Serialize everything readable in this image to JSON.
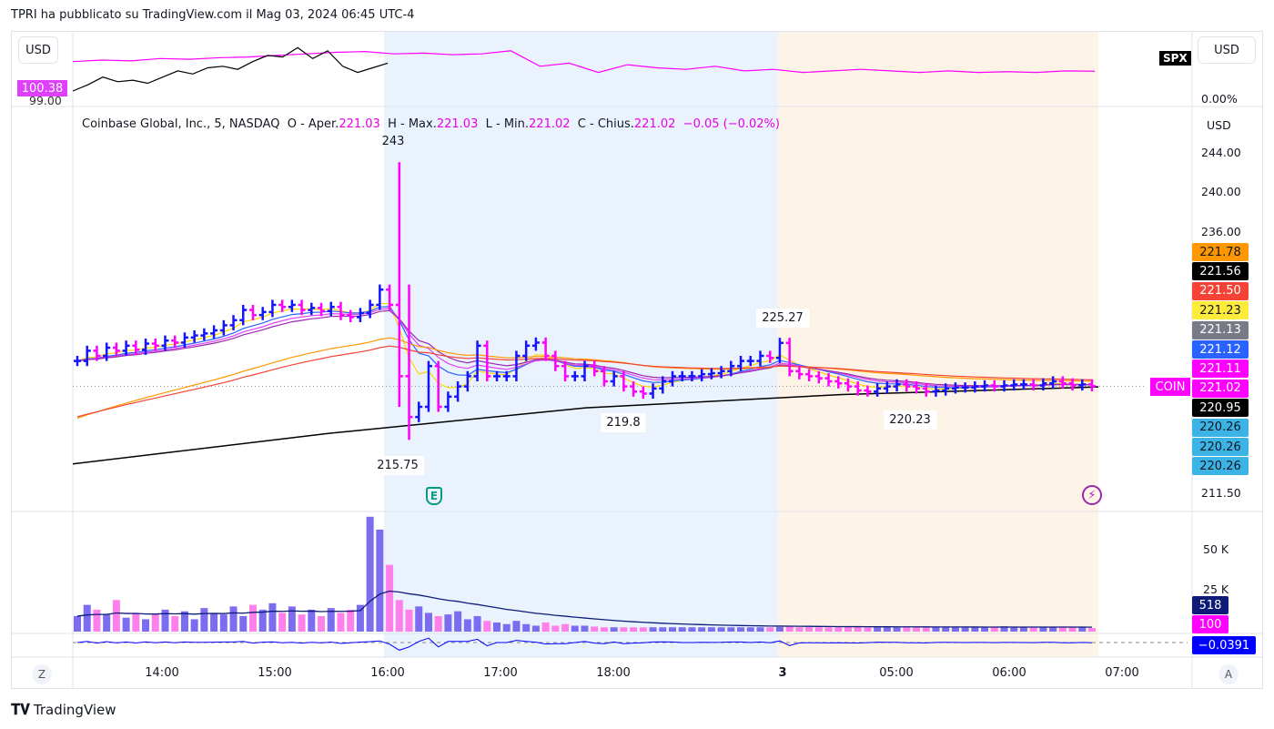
{
  "header": {
    "title": "TPRI ha pubblicato su TradingView.com il Mag 03, 2024 06:45 UTC-4"
  },
  "legend": {
    "name": "Coinbase Global, Inc., 5, NASDAQ",
    "o_label": "O - Aper.",
    "o": "221.03",
    "h_label": "H - Max.",
    "h": "221.03",
    "l_label": "L - Min.",
    "l": "221.02",
    "c_label": "C - Chius.",
    "c": "221.02",
    "change": "−0.05 (−0.02%)"
  },
  "top_pane": {
    "currency_left": "USD",
    "currency_right": "USD",
    "symbol_badge": "SPX",
    "value_badge": "100.38",
    "left_tick": "99.00",
    "right_tick": "0.00%"
  },
  "main_pane": {
    "currency": "USD",
    "symbol_badge": "COIN",
    "price_ticks": [
      "244.00",
      "240.00",
      "236.00",
      "211.50"
    ],
    "price_badges": [
      {
        "v": "221.78",
        "bg": "#ff9800",
        "fg": "#131722"
      },
      {
        "v": "221.56",
        "bg": "#000000",
        "fg": "#ffffff"
      },
      {
        "v": "221.50",
        "bg": "#f44336",
        "fg": "#ffffff"
      },
      {
        "v": "221.23",
        "bg": "#ffeb3b",
        "fg": "#131722"
      },
      {
        "v": "221.13",
        "bg": "#787b86",
        "fg": "#ffffff"
      },
      {
        "v": "221.12",
        "bg": "#2962ff",
        "fg": "#ffffff"
      },
      {
        "v": "221.11",
        "bg": "#ff00ff",
        "fg": "#ffffff"
      },
      {
        "v": "221.02",
        "bg": "#ff00ff",
        "fg": "#ffffff"
      },
      {
        "v": "220.95",
        "bg": "#000000",
        "fg": "#ffffff"
      },
      {
        "v": "220.26",
        "bg": "#3bb3e4",
        "fg": "#131722"
      },
      {
        "v": "220.26",
        "bg": "#3bb3e4",
        "fg": "#131722"
      },
      {
        "v": "220.26",
        "bg": "#3bb3e4",
        "fg": "#131722"
      }
    ],
    "annotations": [
      "243",
      "215.75",
      "225.27",
      "219.8",
      "220.23"
    ],
    "earnings_icon": "E"
  },
  "volume_pane": {
    "ticks": [
      "50 K",
      "25 K"
    ],
    "badges": [
      {
        "v": "518",
        "bg": "#0d1b7a"
      },
      {
        "v": "100",
        "bg": "#ff00ff"
      }
    ]
  },
  "osc_pane": {
    "badge": "−0.0391"
  },
  "time_axis": [
    "14:00",
    "15:00",
    "16:00",
    "17:00",
    "18:00",
    "3",
    "05:00",
    "06:00",
    "07:00"
  ],
  "footer": {
    "z": "Z",
    "a": "A",
    "brand": "TradingView"
  },
  "colors": {
    "up": "#1414ff",
    "down": "#ff00ff",
    "vol_up": "#7b6cf0",
    "vol_down": "#ff80ea",
    "session_blue": "#eaf3fd",
    "session_orange": "#fdf3e6"
  },
  "chart_data": {
    "type": "ohlc",
    "symbol": "COIN",
    "interval": "5",
    "closes": [
      223.5,
      224.5,
      224,
      224.8,
      224.5,
      225,
      224.6,
      225.2,
      225,
      225.5,
      225.3,
      225.8,
      226,
      226.2,
      226.5,
      227,
      227.5,
      228.5,
      228,
      228.3,
      229,
      228.8,
      229,
      228.5,
      228.7,
      228.4,
      228.8,
      228,
      227.8,
      228.2,
      229,
      230.5,
      229,
      222,
      218,
      219,
      223,
      219,
      220,
      221,
      222,
      225,
      222,
      222,
      222,
      224,
      225,
      225.3,
      224,
      223,
      222,
      222,
      223,
      222.5,
      221.5,
      222,
      221,
      220.5,
      220.3,
      220.8,
      221.5,
      222,
      222,
      222,
      222.2,
      222.3,
      222.5,
      223,
      223.5,
      223.5,
      224,
      223.8,
      225.27,
      222.5,
      222.2,
      222,
      221.8,
      221.5,
      221.3,
      221,
      220.6,
      220.5,
      220.8,
      221,
      221.2,
      221,
      220.8,
      220.5,
      220.6,
      220.8,
      220.9,
      220.9,
      221,
      221.1,
      221,
      221.1,
      221.2,
      221.2,
      221.1,
      221.3,
      221.5,
      221.3,
      221.1,
      221.2,
      221.02
    ],
    "extremes": {
      "high": 243,
      "low": 215.75
    },
    "volume_k": [
      8,
      15,
      12,
      9,
      18,
      7,
      10,
      6,
      9,
      12,
      8,
      11,
      6,
      13,
      10,
      9,
      14,
      8,
      15,
      12,
      16,
      10,
      14,
      9,
      12,
      8,
      13,
      10,
      12,
      15,
      70,
      62,
      40,
      18,
      12,
      14,
      10,
      8,
      9,
      11,
      6,
      8,
      5,
      4,
      3,
      5,
      3,
      2,
      4,
      2,
      3,
      2,
      2,
      1.5,
      1,
      1,
      1,
      1,
      1,
      1,
      1,
      1,
      1,
      1,
      1,
      1,
      1,
      1,
      1,
      1,
      1,
      1,
      1.2,
      1.5,
      1,
      1.2,
      1,
      1,
      1,
      1,
      1.3,
      1,
      1,
      1.5,
      1,
      1,
      1.2,
      1,
      1,
      1,
      1.4,
      1,
      1,
      1,
      1,
      1.5,
      1,
      1,
      1.2,
      1,
      1,
      1.3,
      1.2,
      1,
      0.5
    ],
    "ema": [
      {
        "period": 5,
        "color": "#ffd600"
      },
      {
        "period": 9,
        "color": "#2962ff"
      },
      {
        "period": 12,
        "color": "#e040fb"
      },
      {
        "period": 15,
        "color": "#9c27b0"
      },
      {
        "period": 40,
        "color": "#ff9800",
        "seed": 217.6
      },
      {
        "period": 50,
        "color": "#f44336",
        "seed": 217.8
      }
    ],
    "ma200": [
      213.4,
      216.4,
      218.9,
      220.2,
      220.95
    ],
    "spx": [
      100.9,
      101.0,
      100.95,
      101.1,
      101.05,
      101.15,
      101.2,
      101.3,
      101.4,
      101.5,
      101.55,
      101.4,
      101.45,
      101.35,
      101.4,
      101.6,
      100.6,
      100.8,
      100.2,
      100.7,
      100.5,
      100.4,
      100.6,
      100.3,
      100.4,
      100.2,
      100.3,
      100.4,
      100.3,
      100.2,
      100.3,
      100.2,
      100.25,
      100.2,
      100.3,
      100.28
    ],
    "spx_black": [
      99.0,
      99.4,
      99.9,
      99.6,
      99.7,
      99.5,
      99.9,
      100.3,
      100.1,
      100.5,
      100.6,
      100.4,
      100.9,
      101.3,
      101.2,
      101.8,
      101.1,
      101.6,
      100.6,
      100.2,
      100.5,
      100.8
    ],
    "price_range": [
      211.5,
      244
    ],
    "volume_range_k": [
      0,
      50
    ]
  }
}
